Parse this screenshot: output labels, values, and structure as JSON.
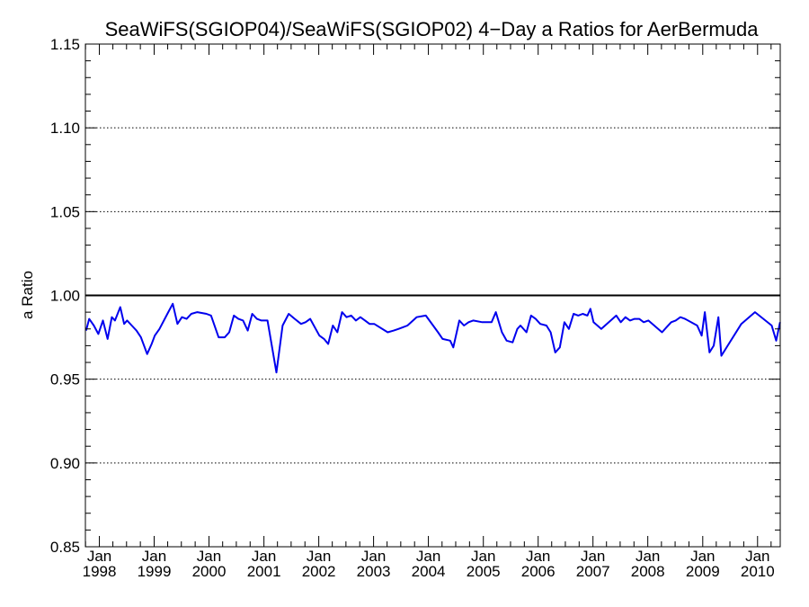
{
  "chart_data": {
    "type": "line",
    "title": "SeaWiFS(SGIOP04)/SeaWiFS(SGIOP02) 4−Day a Ratios for AerBermuda",
    "xlabel": "",
    "ylabel": "a Ratio",
    "xlim": [
      "1997-09-30",
      "2010-06-01"
    ],
    "ylim": [
      0.85,
      1.15
    ],
    "yticks": [
      0.85,
      0.9,
      0.95,
      1.0,
      1.05,
      1.1,
      1.15
    ],
    "ytick_labels": [
      "0.85",
      "0.90",
      "0.95",
      "1.00",
      "1.05",
      "1.10",
      "1.15"
    ],
    "xticks": [
      "1998-01-01",
      "1999-01-01",
      "2000-01-01",
      "2001-01-01",
      "2002-01-01",
      "2003-01-01",
      "2004-01-01",
      "2005-01-01",
      "2006-01-01",
      "2007-01-01",
      "2008-01-01",
      "2009-01-01",
      "2010-01-01"
    ],
    "xtick_labels": [
      {
        "month": "Jan",
        "year": "1998"
      },
      {
        "month": "Jan",
        "year": "1999"
      },
      {
        "month": "Jan",
        "year": "2000"
      },
      {
        "month": "Jan",
        "year": "2001"
      },
      {
        "month": "Jan",
        "year": "2002"
      },
      {
        "month": "Jan",
        "year": "2003"
      },
      {
        "month": "Jan",
        "year": "2004"
      },
      {
        "month": "Jan",
        "year": "2005"
      },
      {
        "month": "Jan",
        "year": "2006"
      },
      {
        "month": "Jan",
        "year": "2007"
      },
      {
        "month": "Jan",
        "year": "2008"
      },
      {
        "month": "Jan",
        "year": "2009"
      },
      {
        "month": "Jan",
        "year": "2010"
      }
    ],
    "grid": "dotted horizontal lines at major y ticks",
    "reference_line": {
      "y": 1.0,
      "color": "#000000"
    },
    "series": [
      {
        "color": "#0000ee",
        "x": [
          "1997-10-05",
          "1997-10-25",
          "1997-11-25",
          "1997-12-25",
          "1998-01-25",
          "1998-02-25",
          "1998-03-25",
          "1998-04-15",
          "1998-05-20",
          "1998-06-15",
          "1998-07-05",
          "1998-08-05",
          "1998-09-05",
          "1998-10-05",
          "1998-11-15",
          "1998-12-15",
          "1999-01-05",
          "1999-02-05",
          "1999-04-05",
          "1999-05-05",
          "1999-06-05",
          "1999-07-05",
          "1999-08-05",
          "1999-09-05",
          "1999-10-15",
          "1999-12-15",
          "2000-01-15",
          "2000-03-05",
          "2000-04-15",
          "2000-05-15",
          "2000-06-15",
          "2000-07-15",
          "2000-08-15",
          "2000-09-15",
          "2000-10-15",
          "2000-11-15",
          "2000-12-15",
          "2001-01-25",
          "2001-03-25",
          "2001-05-05",
          "2001-06-15",
          "2001-07-25",
          "2001-09-05",
          "2001-10-05",
          "2001-11-05",
          "2002-01-05",
          "2002-02-05",
          "2002-03-05",
          "2002-04-05",
          "2002-05-05",
          "2002-06-05",
          "2002-07-05",
          "2002-08-05",
          "2002-09-05",
          "2002-10-05",
          "2002-11-05",
          "2002-12-05",
          "2003-01-05",
          "2003-04-05",
          "2003-05-15",
          "2003-06-15",
          "2003-07-15",
          "2003-08-15",
          "2003-10-15",
          "2003-12-15",
          "2004-03-05",
          "2004-04-05",
          "2004-05-25",
          "2004-06-15",
          "2004-07-25",
          "2004-08-25",
          "2004-09-25",
          "2004-10-25",
          "2004-12-25",
          "2005-02-25",
          "2005-03-25",
          "2005-05-05",
          "2005-06-05",
          "2005-07-15",
          "2005-08-15",
          "2005-09-05",
          "2005-10-15",
          "2005-11-15",
          "2005-12-15",
          "2006-01-15",
          "2006-02-25",
          "2006-03-25",
          "2006-04-25",
          "2006-05-25",
          "2006-06-25",
          "2006-07-25",
          "2006-08-25",
          "2006-09-25",
          "2006-10-25",
          "2006-11-25",
          "2006-12-15",
          "2007-01-05",
          "2007-02-25",
          "2007-06-05",
          "2007-07-05",
          "2007-08-05",
          "2007-09-05",
          "2007-10-05",
          "2007-11-05",
          "2007-12-05",
          "2008-01-05",
          "2008-04-05",
          "2008-05-05",
          "2008-06-05",
          "2008-07-05",
          "2008-08-05",
          "2008-09-05",
          "2008-11-25",
          "2008-12-25",
          "2009-01-15",
          "2009-02-15",
          "2009-03-15",
          "2009-04-15",
          "2009-05-05",
          "2009-09-15",
          "2009-12-15",
          "2010-04-05",
          "2010-05-05",
          "2010-05-31"
        ],
        "y": [
          0.979,
          0.986,
          0.982,
          0.977,
          0.985,
          0.974,
          0.987,
          0.985,
          0.993,
          0.983,
          0.985,
          0.982,
          0.979,
          0.975,
          0.965,
          0.971,
          0.976,
          0.98,
          0.99,
          0.995,
          0.983,
          0.987,
          0.986,
          0.989,
          0.99,
          0.989,
          0.988,
          0.975,
          0.975,
          0.978,
          0.988,
          0.986,
          0.985,
          0.979,
          0.989,
          0.986,
          0.985,
          0.985,
          0.954,
          0.982,
          0.989,
          0.986,
          0.983,
          0.984,
          0.986,
          0.976,
          0.974,
          0.971,
          0.982,
          0.978,
          0.99,
          0.987,
          0.988,
          0.985,
          0.987,
          0.985,
          0.983,
          0.983,
          0.978,
          0.979,
          0.98,
          0.981,
          0.982,
          0.987,
          0.988,
          0.978,
          0.974,
          0.973,
          0.969,
          0.985,
          0.982,
          0.984,
          0.985,
          0.984,
          0.984,
          0.99,
          0.978,
          0.973,
          0.972,
          0.98,
          0.982,
          0.978,
          0.988,
          0.986,
          0.983,
          0.982,
          0.978,
          0.966,
          0.969,
          0.984,
          0.98,
          0.989,
          0.988,
          0.989,
          0.988,
          0.992,
          0.984,
          0.98,
          0.988,
          0.984,
          0.987,
          0.985,
          0.986,
          0.986,
          0.984,
          0.985,
          0.978,
          0.981,
          0.984,
          0.985,
          0.987,
          0.986,
          0.982,
          0.976,
          0.99,
          0.966,
          0.97,
          0.987,
          0.964,
          0.983,
          0.99,
          0.982,
          0.973,
          0.984
        ]
      }
    ]
  }
}
